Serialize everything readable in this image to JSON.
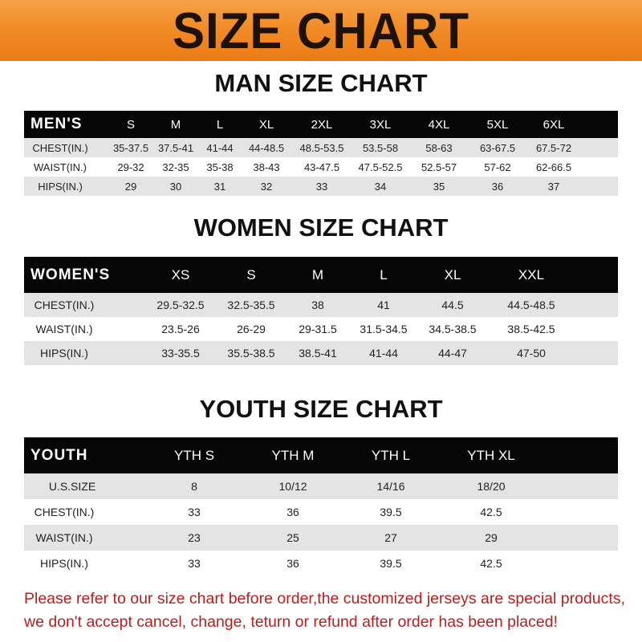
{
  "title": "SIZE CHART",
  "colors": {
    "banner": "#f08a24",
    "header": "#060606",
    "stripe": "#e4e4e4",
    "note": "#b3201e"
  },
  "men": {
    "title": "MAN SIZE CHART",
    "label": "MEN'S",
    "sizes": [
      "S",
      "M",
      "L",
      "XL",
      "2XL",
      "3XL",
      "4XL",
      "5XL",
      "6XL"
    ],
    "rows": [
      {
        "label": "CHEST(IN.)",
        "values": [
          "35-37.5",
          "37.5-41",
          "41-44",
          "44-48.5",
          "48.5-53.5",
          "53.5-58",
          "58-63",
          "63-67.5",
          "67.5-72"
        ]
      },
      {
        "label": "WAIST(IN.)",
        "values": [
          "29-32",
          "32-35",
          "35-38",
          "38-43",
          "43-47.5",
          "47.5-52.5",
          "52.5-57",
          "57-62",
          "62-66.5"
        ]
      },
      {
        "label": "HIPS(IN.)",
        "values": [
          "29",
          "30",
          "31",
          "32",
          "33",
          "34",
          "35",
          "36",
          "37"
        ]
      }
    ]
  },
  "women": {
    "title": "WOMEN SIZE CHART",
    "label": "WOMEN'S",
    "sizes": [
      "XS",
      "S",
      "M",
      "L",
      "XL",
      "XXL"
    ],
    "rows": [
      {
        "label": "CHEST(IN.)",
        "values": [
          "29.5-32.5",
          "32.5-35.5",
          "38",
          "41",
          "44.5",
          "44.5-48.5"
        ]
      },
      {
        "label": "WAIST(IN.)",
        "values": [
          "23.5-26",
          "26-29",
          "29-31.5",
          "31.5-34.5",
          "34.5-38.5",
          "38.5-42.5"
        ]
      },
      {
        "label": "HIPS(IN.)",
        "values": [
          "33-35.5",
          "35.5-38.5",
          "38.5-41",
          "41-44",
          "44-47",
          "47-50"
        ]
      }
    ]
  },
  "youth": {
    "title": "YOUTH SIZE CHART",
    "label": "YOUTH",
    "sizes": [
      "YTH S",
      "YTH M",
      "YTH L",
      "YTH XL"
    ],
    "rows": [
      {
        "label": "U.S.SIZE",
        "values": [
          "8",
          "10/12",
          "14/16",
          "18/20"
        ]
      },
      {
        "label": "CHEST(IN.)",
        "values": [
          "33",
          "36",
          "39.5",
          "42.5"
        ]
      },
      {
        "label": "WAIST(IN.)",
        "values": [
          "23",
          "25",
          "27",
          "29"
        ]
      },
      {
        "label": "HIPS(IN.)",
        "values": [
          "33",
          "36",
          "39.5",
          "42.5"
        ]
      }
    ]
  },
  "notice": [
    "Please refer to our size chart before order,the customized jerseys are special products,",
    "we don't accept cancel, change, teturn or refund after order has been placed!"
  ]
}
